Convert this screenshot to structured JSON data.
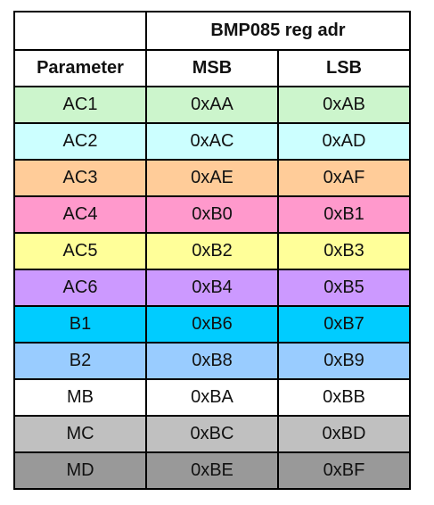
{
  "table": {
    "header": {
      "group": "BMP085 reg adr",
      "columns": [
        "Parameter",
        "MSB",
        "LSB"
      ]
    },
    "rows": [
      [
        "AC1",
        "0xAA",
        "0xAB"
      ],
      [
        "AC2",
        "0xAC",
        "0xAD"
      ],
      [
        "AC3",
        "0xAE",
        "0xAF"
      ],
      [
        "AC4",
        "0xB0",
        "0xB1"
      ],
      [
        "AC5",
        "0xB2",
        "0xB3"
      ],
      [
        "AC6",
        "0xB4",
        "0xB5"
      ],
      [
        "B1",
        "0xB6",
        "0xB7"
      ],
      [
        "B2",
        "0xB8",
        "0xB9"
      ],
      [
        "MB",
        "0xBA",
        "0xBB"
      ],
      [
        "MC",
        "0xBC",
        "0xBD"
      ],
      [
        "MD",
        "0xBE",
        "0xBF"
      ]
    ]
  }
}
